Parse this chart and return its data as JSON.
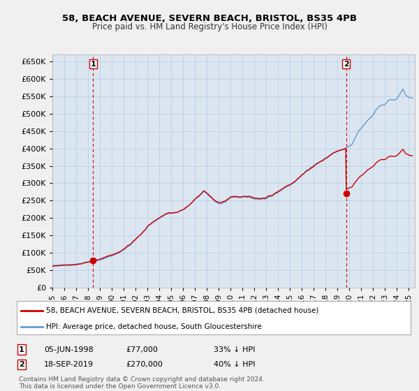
{
  "title1": "58, BEACH AVENUE, SEVERN BEACH, BRISTOL, BS35 4PB",
  "title2": "Price paid vs. HM Land Registry's House Price Index (HPI)",
  "legend_label_red": "58, BEACH AVENUE, SEVERN BEACH, BRISTOL, BS35 4PB (detached house)",
  "legend_label_blue": "HPI: Average price, detached house, South Gloucestershire",
  "annotation1_date": "05-JUN-1998",
  "annotation1_price": "£77,000",
  "annotation1_hpi": "33% ↓ HPI",
  "annotation2_date": "18-SEP-2019",
  "annotation2_price": "£270,000",
  "annotation2_hpi": "40% ↓ HPI",
  "footer": "Contains HM Land Registry data © Crown copyright and database right 2024.\nThis data is licensed under the Open Government Licence v3.0.",
  "ylim": [
    0,
    670000
  ],
  "yticks": [
    0,
    50000,
    100000,
    150000,
    200000,
    250000,
    300000,
    350000,
    400000,
    450000,
    500000,
    550000,
    600000,
    650000
  ],
  "xlim_start": 1995.0,
  "xlim_end": 2025.5,
  "sale1_x": 1998.43,
  "sale1_y": 77000,
  "sale2_x": 2019.72,
  "sale2_y": 270000,
  "background_color": "#f0f0f0",
  "plot_bg_color": "#dce6f1",
  "red_color": "#cc0000",
  "blue_color": "#6699cc",
  "grid_color": "#b8cce4"
}
